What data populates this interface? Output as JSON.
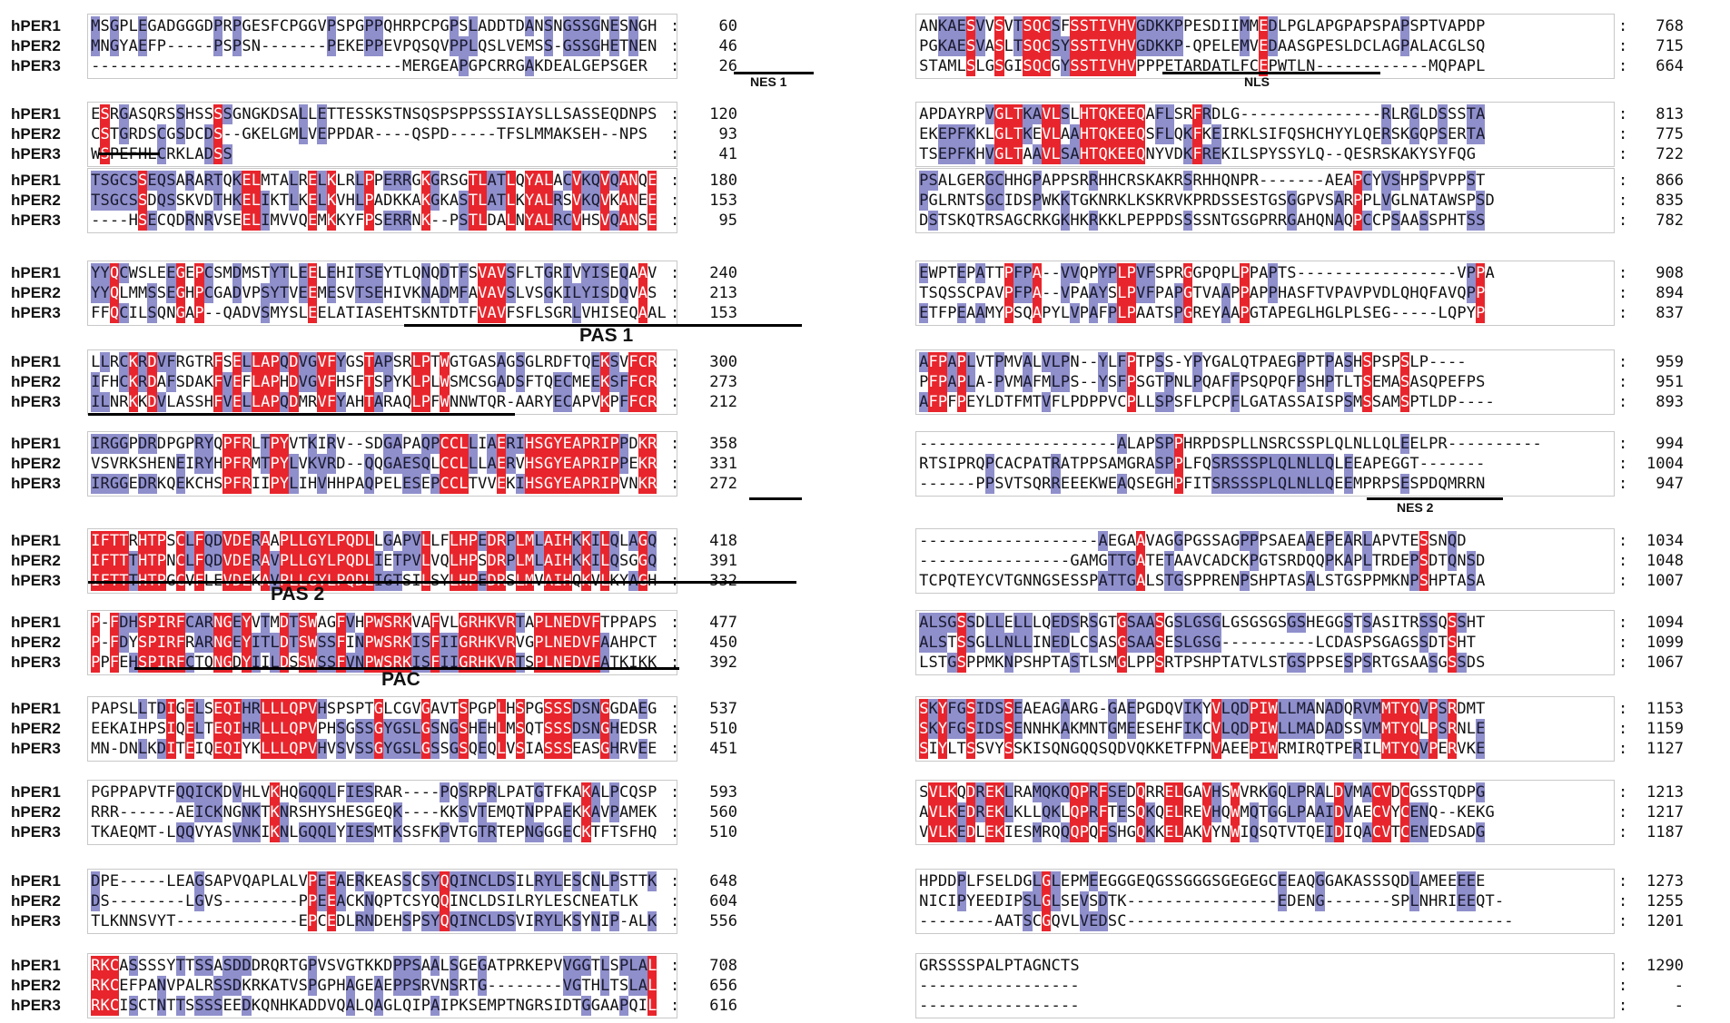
{
  "colors": {
    "identical": "#e8252c",
    "similar": "#8f8fcc",
    "text": "#111111",
    "underline": "#000000"
  },
  "left_blocks": [
    {
      "rows": [
        {
          "label": "hPER1",
          "seq": "MSGPLEGADGGGDPRPGESFCPGGVPSPGPPQHRPCPGPSLADDTDANSNGSSGNESNGH",
          "end": "60"
        },
        {
          "label": "hPER2",
          "seq": "MNGYAEFP-----PSPSN-------PEKEPPEVPQSQVPPLQSLVEMSS-GSSGHETNEN",
          "end": "46"
        },
        {
          "label": "hPER3",
          "seq": "---------------------------------MERGEAPGPCRRGAKDEALGEPSGER",
          "end": "26"
        }
      ]
    },
    {
      "rows": [
        {
          "label": "hPER1",
          "seq": "ESRGASQRSSHSSSSGNGKDSALLETTESSKSTNSQSPSPPSSSIAYSLLSASSEQDNPS",
          "end": "120"
        },
        {
          "label": "hPER2",
          "seq": "CSTGRDSCGSDCDS--GKELGMLVEPPDAR----QSPD-----TFSLMMAKSEH--NPS",
          "end": "93"
        },
        {
          "label": "hPER3",
          "seq": "WSPEFHLCRKLADSS",
          "end": "41"
        }
      ]
    },
    {
      "rows": [
        {
          "label": "hPER1",
          "seq": "TSGCSSEQSARARTQKELMTALRELKLRLPPERRGKGRSGTLATLQYALACVKQVQANQE",
          "end": "180"
        },
        {
          "label": "hPER2",
          "seq": "TSGCSSDQSSKVDTHKELIKTLKELKVHLPADKKAKGKASTLATLKYALRSVKQVKANEE",
          "end": "153"
        },
        {
          "label": "hPER3",
          "seq": "----HSECQDRNRVSEELIMVVQEMKKYFPSERRNK--PSTLDALNYALRCVHSVQANSE",
          "end": "95"
        }
      ]
    },
    {
      "rows": [
        {
          "label": "hPER1",
          "seq": "YYQCWSLEEGEPCSMDMSTYTLEELEHITSEYTLQNQDTFSVAVSFLTGRIVYISEQAAV",
          "end": "240"
        },
        {
          "label": "hPER2",
          "seq": "YYQLMMSSEGHPCGADVPSYTVEEMESVTSEHIVKNADMFAVAVSLVSGKILYISDQVAS",
          "end": "213"
        },
        {
          "label": "hPER3",
          "seq": "FFQCILSQNGAP--QADVSMYSLEELATIASEHTSKNTDTFVAVFSFLSGRLVHISEQAAL",
          "end": "153"
        }
      ]
    },
    {
      "rows": [
        {
          "label": "hPER1",
          "seq": "LLRCKRDVFRGTRFSELLAPQDVGVFYGSTAPSRLPTWGTGASAGSGLRDFTQEKSVFCR",
          "end": "300"
        },
        {
          "label": "hPER2",
          "seq": "IFHCKRDAFSDAKFVEFLAPHDVGVFHSFTSPYKLPLWSMCSGADSFTQECMEEKSFFCR",
          "end": "273"
        },
        {
          "label": "hPER3",
          "seq": "ILNRKKDVLASSHFVELLAPQDMRVFYAHTARAQLPFWNNWTQR-AARYECAPVKPFFCR",
          "end": "212"
        }
      ]
    },
    {
      "rows": [
        {
          "label": "hPER1",
          "seq": "IRGGPDRDPGPRYQPFRLTPYVTKIRV--SDGAPAQPCCLLIAERIHSGYEAPRIPPDKR",
          "end": "358"
        },
        {
          "label": "hPER2",
          "seq": "VSVRKSHENEIRYHPFRMTPYLVKVRD--QQGAESQLCCLLLAERVHSGYEAPRIPPEKR",
          "end": "331"
        },
        {
          "label": "hPER3",
          "seq": "IRGGEDRKQEKCHSPFRIIPYLIHVHHPAQPELESEPCCLTVVEKIHSGYEAPRIPVNKR",
          "end": "272"
        }
      ]
    },
    {
      "rows": [
        {
          "label": "hPER1",
          "seq": "IFTTRHTPSCLFQDVDERAAPLLGYLPQDLLGAPVLLFLHPEDRPLMLAIHKKILQLAGQ",
          "end": "418"
        },
        {
          "label": "hPER2",
          "seq": "IFTTTHTPNCLFQDVDERAVPLLGYLPQDLIETPVLVQLHPSDRPLMLAIHKKILQSGGQ",
          "end": "391"
        },
        {
          "label": "hPER3",
          "seq": "IFTTTHTPGCVFLEVDEKAVPLLGYLPQDLIGTSILSYLHPEDRSLMVAIHQKVLKYAGH",
          "end": "332"
        }
      ]
    },
    {
      "rows": [
        {
          "label": "hPER1",
          "seq": "P-FDHSPIRFCARNGEYVTMDTSWAGFVHPWSRKVAFVLGRHKVRTAPLNEDVFTPPAPS",
          "end": "477"
        },
        {
          "label": "hPER2",
          "seq": "P-FDYSPIRFRARNGEYITLDTSWSSFINPWSRKISFIIGRHKVRVGPLNEDVFAAHPCT",
          "end": "450"
        },
        {
          "label": "hPER3",
          "seq": "PPFEHSPIRFCTQNGDYIILDSSWSSFVNPWSRKISFIIGRHKVRTSPLNEDVFATKIKK",
          "end": "392"
        }
      ]
    },
    {
      "rows": [
        {
          "label": "hPER1",
          "seq": "PAPSLLTDIGELSEQIHRLLLQPVHSPSPTGLCGVGAVTSPGPLHSPGSSSDSNGGDAEG",
          "end": "537"
        },
        {
          "label": "hPER2",
          "seq": "EEKAIHPSIQELTEQIHRLLLQPVPHSGSSGYGSLGSNGSHEHLMSQTSSSDSNGHEDSR",
          "end": "510"
        },
        {
          "label": "hPER3",
          "seq": "MN-DNLKDITEIQEQIYKLLLQPVHVSVSSGYGSLGSSGSQEQLVSIASSSEASGHRVEE",
          "end": "451"
        }
      ]
    },
    {
      "rows": [
        {
          "label": "hPER1",
          "seq": "PGPPAPVTFQQICKDVHLVKHQGQQLFIESRAR----PQSRPRLPATGTFKAKALPCQSP",
          "end": "593"
        },
        {
          "label": "hPER2",
          "seq": "RRR------AEICKNGNKTKNRSHYSHESGEQK----KKSVTEMQTNPPAEKKAVPAMEK",
          "end": "560"
        },
        {
          "label": "hPER3",
          "seq": "TKAEQMT-LQQVYASVNKIKNLGQQLYIESMTKSSFKPVTGTRTEPNGGGECKTFTSFHQ",
          "end": "510"
        }
      ]
    },
    {
      "rows": [
        {
          "label": "hPER1",
          "seq": "DPE-----LEAGSAPVQAPLALVPEEAERKEASSCSYQQINCLDSILRYLESCNLPSTTK",
          "end": "648"
        },
        {
          "label": "hPER2",
          "seq": "DS--------LGVS--------PPEEACKNQPTCSYQQINCLDSILRYLESCNEATLK",
          "end": "604"
        },
        {
          "label": "hPER3",
          "seq": "TLKNNSVYT-------------EPCEDLRNDEHSPSYQQINCLDSVIRYLKSYNIP-ALK",
          "end": "556"
        }
      ]
    },
    {
      "rows": [
        {
          "label": "hPER1",
          "seq": "RKCASSSSYTTSSASDDDRQRTGPVSVGTKKDPPSAALSGEGATPRKEPVVGGTLSPLAL",
          "end": "708"
        },
        {
          "label": "hPER2",
          "seq": "RKCEFPANVPALRSSDKRKATVSPGPHAGEAEPPSRVNSRTG--------VGTHLTSLAL",
          "end": "656"
        },
        {
          "label": "hPER3",
          "seq": "RKCISCTNTTSSSSEEDKQNHKADDVQALQAGLQIPAIPKSEMPTNGRSIDTGGAAPQIL",
          "end": "616"
        }
      ]
    }
  ],
  "right_blocks": [
    {
      "rows": [
        {
          "label": "",
          "seq": "ANKAESVVSVTSQCSFSSTIVHVGDKKPPESDIIMMEDLPGLAPGPAPSPAPSPTVAPDP",
          "end": "768"
        },
        {
          "label": "",
          "seq": "PGKAESVASLTSQCSYSSTIVHVGDKKP-QPELEMVEDAASGPESLDCLAGPALACGLSQ",
          "end": "715"
        },
        {
          "label": "",
          "seq": "STAMLSLGSGISQCGYSSTIVHVPPPETARDATLFCEPWTLN------------MQPAPL",
          "end": "664"
        }
      ]
    },
    {
      "rows": [
        {
          "label": "",
          "seq": "APDAYRPVGLTKAVLSLHTQKEEQAFLSRFRDLG---------------RLRGLDSSSTA",
          "end": "813"
        },
        {
          "label": "",
          "seq": "EKEPFKKLGLTKEVLAAHTQKEEQSFLQKFKEIRKLSIFQSHCHYYLQERSKGQPSERTA",
          "end": "775"
        },
        {
          "label": "",
          "seq": "TSEPFKHVGLTAAVLSAHTQKEEQNYVDKFREKILSPYSSYLQ--QESRSKAKYSYFQG",
          "end": "722"
        }
      ]
    },
    {
      "rows": [
        {
          "label": "",
          "seq": "PSALGERGCHHGPAPPSRRHHCRSKAKRSRHHQNPR-------AEAPCYVSHPSPVPPST",
          "end": "866"
        },
        {
          "label": "",
          "seq": "PGLRNTSGCIDSPWKKTGKNRKLKSKRVKPRDSSESTGSGGPVSARPPLVGLNATAWSPSD",
          "end": "835"
        },
        {
          "label": "",
          "seq": "DSTSKQTRSAGCRKGKHKRKKLPEPPDSSSSNTGSGPRRGAHQNAQPCCPSAASSPHTSS",
          "end": "782"
        }
      ]
    },
    {
      "rows": [
        {
          "label": "",
          "seq": "EWPTEPATTPFPA--VVQPYPLPVFSPRGGPQPLPPAPTS-----------------VPPA",
          "end": "908"
        },
        {
          "label": "",
          "seq": "TSQSSCPAVPFPA--VPAAYSLPVFPAPGTVAAPPAPPHASFTVPAVPVDLQHQFAVQPP",
          "end": "894"
        },
        {
          "label": "",
          "seq": "ETFPEAAMYPSQAPYLVPAFPLPAATSPGREYAAPGTAPEGLHGLPLSEG-----LQPYP",
          "end": "837"
        }
      ]
    },
    {
      "rows": [
        {
          "label": "",
          "seq": "AFPAPLVTPMVALVLPN--YLFPTPSS-YPYGALQTPAEGPPTPASHSPSPSLP----",
          "end": "959"
        },
        {
          "label": "",
          "seq": "PFPAPLA-PVMAFMLPS--YSFPSGTPNLPQAFFPSQPQFPSHPTLTSEMASASQPEFPS",
          "end": "951"
        },
        {
          "label": "",
          "seq": "AFPFPEYLDTFMTVFLPDPPVCPLLSPSFLPCPFLGATASSAISPSMSSAMSPTLDP----",
          "end": "893"
        }
      ]
    },
    {
      "rows": [
        {
          "label": "",
          "seq": "---------------------ALAPSPPHRPDSPLLNSRCSSPLQLNLLQLEELPR----------",
          "end": "994"
        },
        {
          "label": "",
          "seq": "RTSIPRQPCACPATRATPPSAMGRASPPLFQSRSSSPLQLNLLQLEEAPEGGT-------",
          "end": "1004"
        },
        {
          "label": "",
          "seq": "------PPSVTSQRREEEKWEAQSEGHPFITSRSSSPLQLNLLQEEMPRPSESPDQMRRN",
          "end": "947"
        }
      ]
    },
    {
      "rows": [
        {
          "label": "",
          "seq": "-------------------AEGAAVAGGPGSSAGPPPSAEAAEPEARLAPVTESSNQD",
          "end": "1034"
        },
        {
          "label": "",
          "seq": "----------------GAMGTTGATETAAVCADCKPGTSRDQQPKAPLTRDEPSDTQNSD",
          "end": "1048"
        },
        {
          "label": "",
          "seq": "TCPQTEYCVTGNNGSESSPATTGALSTGSPPRENPSHPTASALSTGSPPMKNPSHPTASA",
          "end": "1007"
        }
      ]
    },
    {
      "rows": [
        {
          "label": "",
          "seq": "ALSGSSDLLELLLQEDSRSGTGSAASGSLGSGLGSGSGSGSHEGGSTSASITRSSQSSHT",
          "end": "1094"
        },
        {
          "label": "",
          "seq": "ALSTSSGLLNLLINEDLCSASGSAASESLGSG----------LCDASPSGAGSSDTSHT",
          "end": "1099"
        },
        {
          "label": "",
          "seq": "LSTGSPPMKNPSHPTASTLSMGLPPSRTPSHPTATVLSTGSPPSESPSRTGSAASGSSDS",
          "end": "1067"
        }
      ]
    },
    {
      "rows": [
        {
          "label": "",
          "seq": "SKYFGSIDSSEAEAGAARG-GAEPGDQVIKYVLQDPIWLLMANADQRVMMTYQVPSRDMT",
          "end": "1153"
        },
        {
          "label": "",
          "seq": "SKYFGSIDSSENNHKAKMNTGMEESEHFIKCVLQDPIWLLMADADSSVMMTYQLPSRNLE",
          "end": "1159"
        },
        {
          "label": "",
          "seq": "SIYLTSSVYSSKISQNGQQSQDVQKKETFPNVAEEPIWRMIRQTPERILMTYQVPERVKE",
          "end": "1127"
        }
      ]
    },
    {
      "rows": [
        {
          "label": "",
          "seq": "SVLKQDREKLRAMQKQQPRFSEDQRRELGAVHSWVRKGQLPRALDVMACVDCGSSTQDPG",
          "end": "1213"
        },
        {
          "label": "",
          "seq": "AVLKEDREKLKLLQKLQPRFTESQKQELREVHQWMQTGGLPAAIDVAECVYCENQ--KEKG",
          "end": "1217"
        },
        {
          "label": "",
          "seq": "VVLKEDLEKIESMRQQQPQFSHGQKKELAKVYNWIQSQTVTQEIDIQACVTCENEDSADG",
          "end": "1187"
        }
      ]
    },
    {
      "rows": [
        {
          "label": "",
          "seq": "HPDDPLFSELDGLGLEPMEEGGGEQGSSGGGSGEGEGCEEAQGGAKASSSQDLAMEEEEE",
          "end": "1273"
        },
        {
          "label": "",
          "seq": "NICIPYEEDIPSLGLSEVSDTK----------------EDENG-------SPLNHRIEEQT-",
          "end": "1255"
        },
        {
          "label": "",
          "seq": "--------AATSCGQVLVEDSC-----------------------------------------",
          "end": "1201"
        }
      ]
    },
    {
      "rows": [
        {
          "label": "",
          "seq": "GRSSSSPALPTAGNCTS",
          "end": "1290"
        },
        {
          "label": "",
          "seq": "-----------------",
          "end": "-"
        },
        {
          "label": "",
          "seq": "-----------------",
          "end": "-"
        }
      ]
    }
  ],
  "annotations": {
    "nes1": "NES 1",
    "nls": "NLS",
    "pas1": "PAS 1",
    "pas2": "PAS 2",
    "pac": "PAC",
    "nes2": "NES 2"
  }
}
